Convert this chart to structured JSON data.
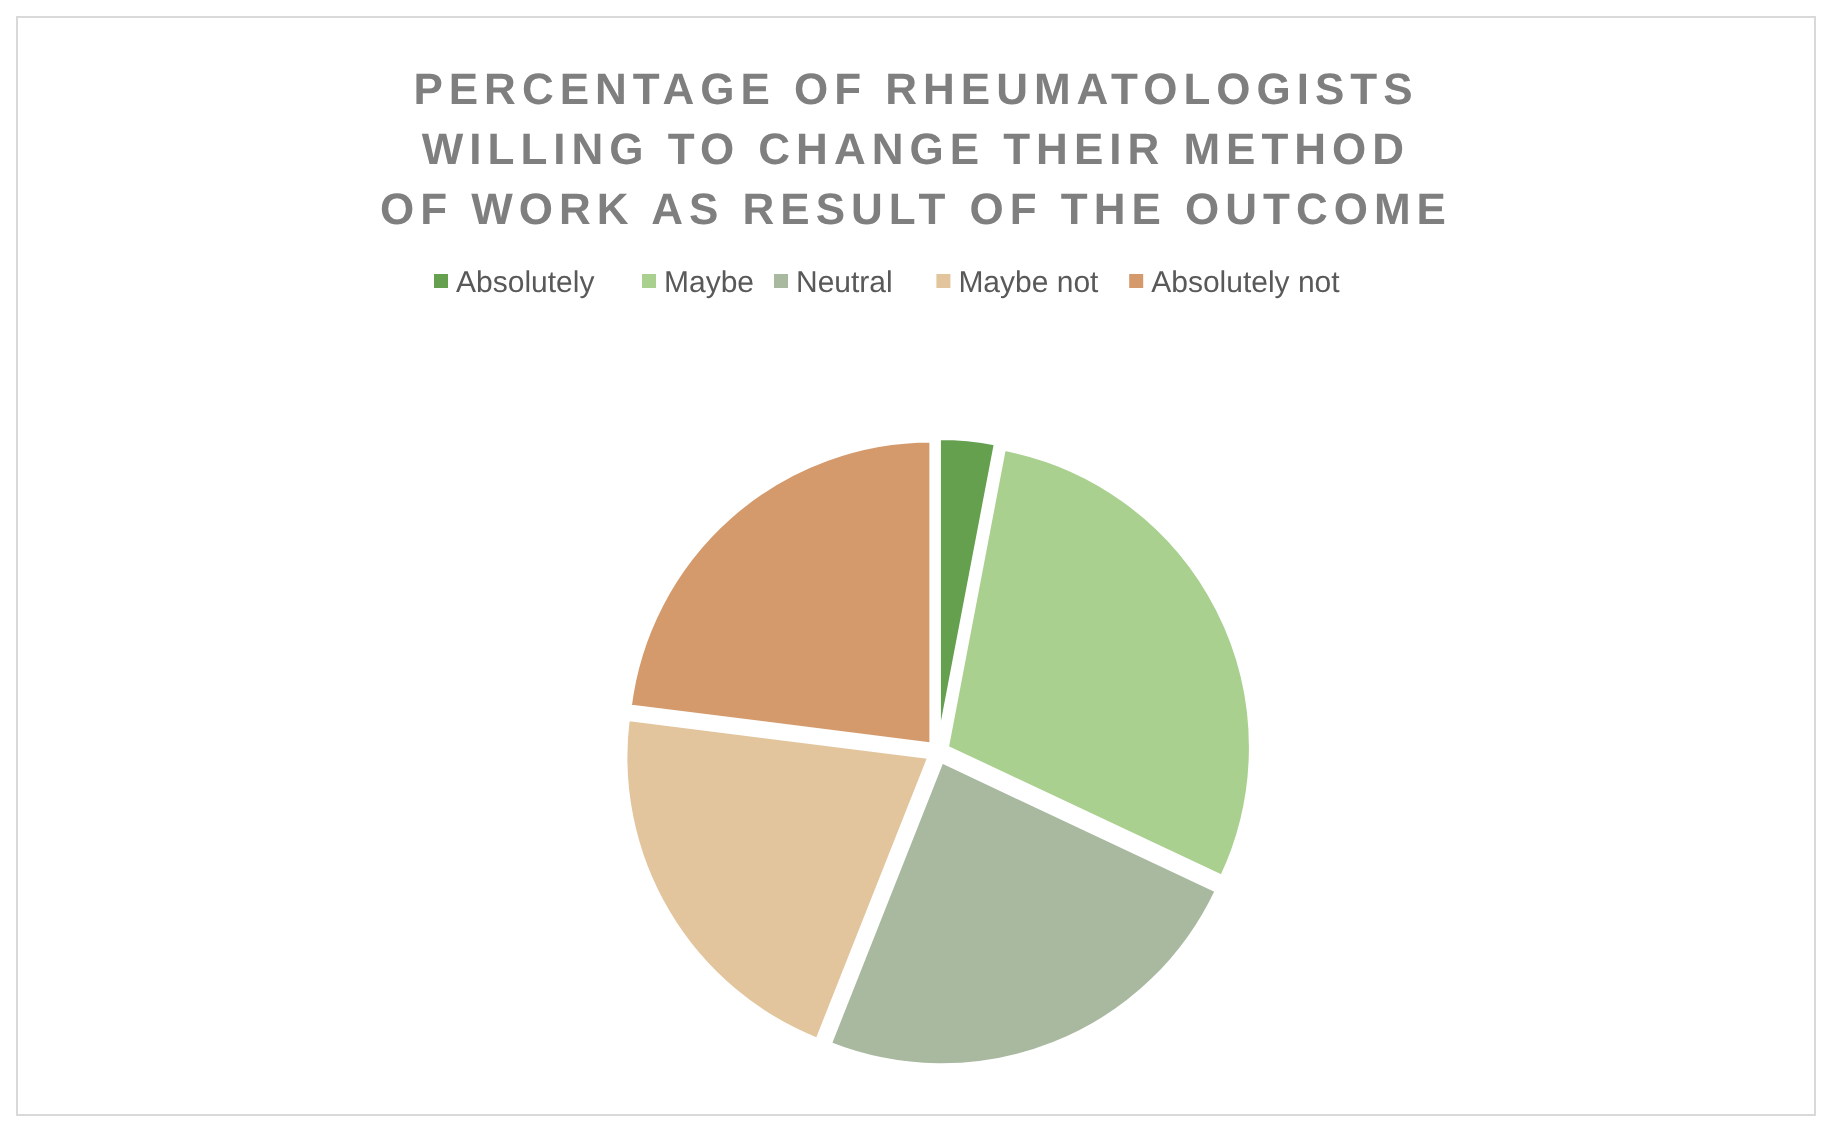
{
  "chart_data": {
    "type": "pie",
    "title": "PERCENTAGE OF RHEUMATOLOGISTS WILLING TO CHANGE THEIR METHOD OF WORK AS RESULT OF THE OUTCOME",
    "categories": [
      "Absolutely",
      "Maybe",
      "Neutral",
      "Maybe not",
      "Absolutely not"
    ],
    "values": [
      3,
      29,
      24,
      21,
      23
    ],
    "colors": [
      "#64a04e",
      "#a9d08e",
      "#a8b9a0",
      "#e2c59c",
      "#d49a6c"
    ],
    "legend": "top"
  }
}
